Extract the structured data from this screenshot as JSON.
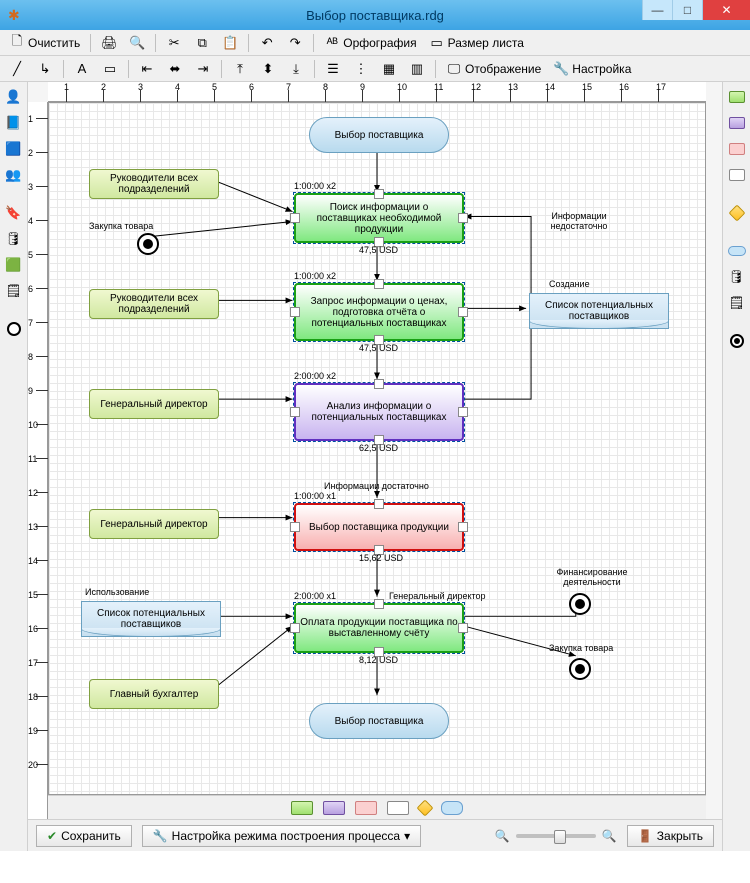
{
  "window": {
    "title": "Выбор поставщика.rdg"
  },
  "toolbar1": {
    "clear": "Очистить",
    "spellcheck": "Орфография",
    "pagesize": "Размер листа"
  },
  "toolbar2": {
    "display": "Отображение",
    "settings": "Настройка"
  },
  "ruler": {
    "h": [
      "1",
      "2",
      "3",
      "4",
      "5",
      "6",
      "7",
      "8",
      "9",
      "10",
      "11",
      "12",
      "13",
      "14",
      "15",
      "16",
      "17"
    ],
    "v": [
      "1",
      "2",
      "3",
      "4",
      "5",
      "6",
      "7",
      "8",
      "9",
      "10",
      "11",
      "12",
      "13",
      "14",
      "15",
      "16",
      "17",
      "18",
      "19",
      "20"
    ]
  },
  "diagram": {
    "start": "Выбор поставщика",
    "end": "Выбор поставщика",
    "actors": {
      "a1": "Руководители всех подразделений",
      "a2": "Руководители всех подразделений",
      "a3": "Генеральный директор",
      "a4": "Генеральный директор",
      "a5": "Главный бухгалтер"
    },
    "extra": {
      "purchase": "Закупка товара",
      "usage": "Использование",
      "doclist": "Список потенциальных поставщиков",
      "doclist2": "Список потенциальных поставщиков",
      "creation": "Создание",
      "gendir": "Генеральный директор",
      "fin": "Финансирование деятельности",
      "purch2": "Закупка товара",
      "insufficient": "Информации недостаточно",
      "sufficient": "Информации достаточно"
    },
    "steps": [
      {
        "label": "Поиск информации о поставщиках необходимой продукции",
        "time": "1:00:00 x2",
        "cost": "47,5 USD",
        "border": "#1aa015",
        "fill": "#80e880"
      },
      {
        "label": "Запрос информации о ценах, подготовка отчёта о потенциальных поставщиках",
        "time": "1:00:00 x2",
        "cost": "47,5 USD",
        "border": "#1aa015",
        "fill": "#80e880"
      },
      {
        "label": "Анализ информации о потенциальных поставщиках",
        "time": "2:00:00 x2",
        "cost": "62,5 USD",
        "border": "#6030c0",
        "fill": "#c8b4f0"
      },
      {
        "label": "Выбор поставщика продукции",
        "time": "1:00:00 x1",
        "cost": "15,62 USD",
        "border": "#d01010",
        "fill": "#f8b0b0"
      },
      {
        "label": "Оплата продукции поставщика по выставленному счёту",
        "time": "2:00:00 x1",
        "cost": "8,12 USD",
        "border": "#1aa015",
        "fill": "#80e880"
      }
    ]
  },
  "bottom": {
    "save": "Сохранить",
    "mode": "Настройка режима построения процесса",
    "close": "Закрыть"
  }
}
